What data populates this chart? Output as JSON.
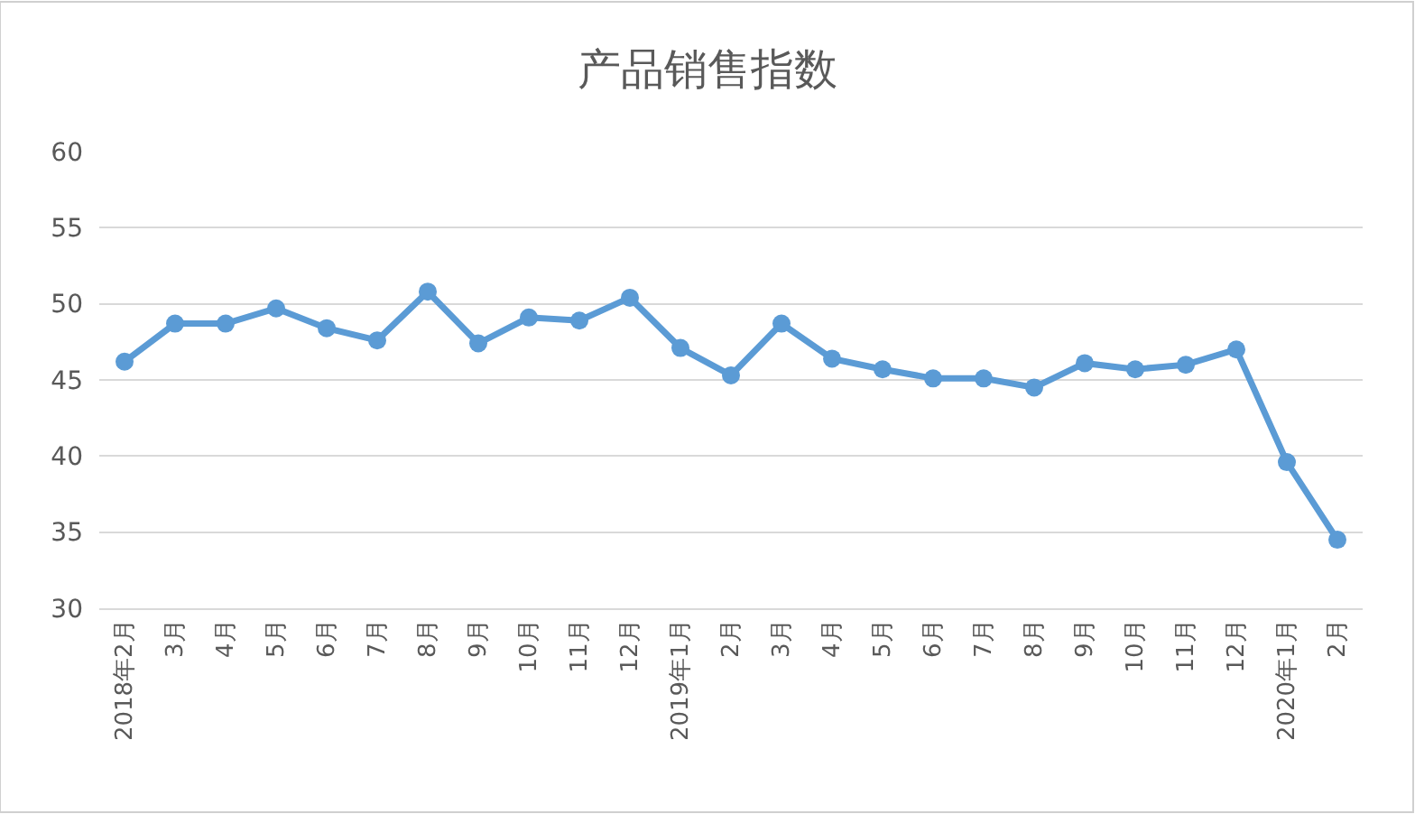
{
  "chart_data": {
    "type": "line",
    "title": "产品销售指数",
    "categories": [
      "2018年2月",
      "3月",
      "4月",
      "5月",
      "6月",
      "7月",
      "8月",
      "9月",
      "10月",
      "11月",
      "12月",
      "2019年1月",
      "2月",
      "3月",
      "4月",
      "5月",
      "6月",
      "7月",
      "8月",
      "9月",
      "10月",
      "11月",
      "12月",
      "2020年1月",
      "2月"
    ],
    "series": [
      {
        "color": "#5b9bd5",
        "values": [
          46.2,
          48.7,
          48.7,
          49.7,
          48.4,
          47.6,
          50.8,
          47.4,
          49.1,
          48.9,
          50.4,
          47.1,
          45.3,
          48.7,
          46.4,
          45.7,
          45.1,
          45.1,
          44.5,
          46.1,
          45.7,
          46.0,
          47.0,
          39.6,
          34.5
        ]
      }
    ],
    "ylim": [
      30,
      60
    ],
    "yticks": [
      30,
      35,
      40,
      45,
      50,
      55,
      60
    ],
    "grid": "y",
    "marker": "circle",
    "line_style": "solid"
  }
}
